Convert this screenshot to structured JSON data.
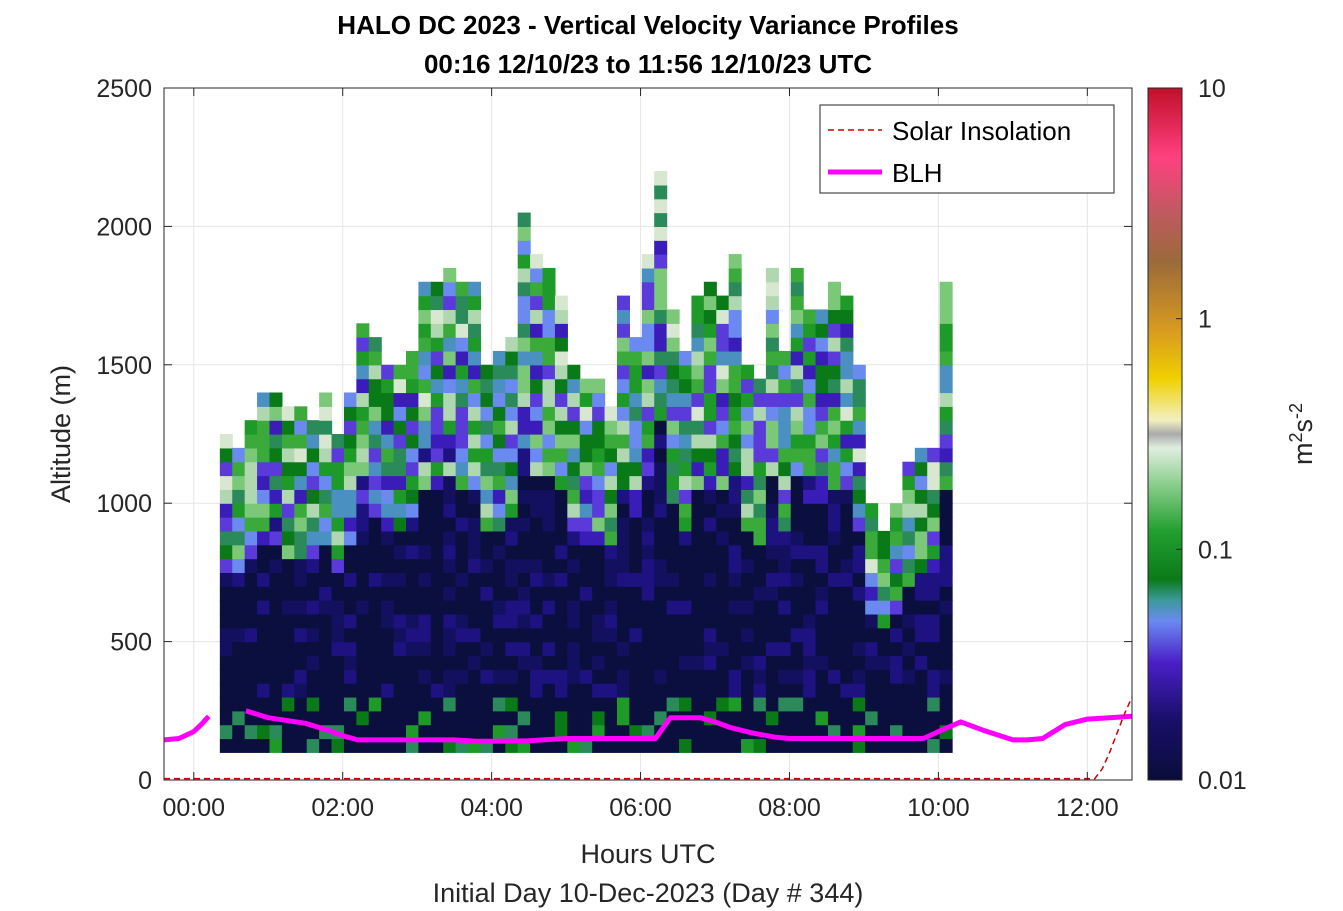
{
  "chart_data": {
    "type": "heatmap",
    "title": "HALO DC 2023 - Vertical Velocity Variance Profiles",
    "subtitle": "00:16 12/10/23 to 11:56 12/10/23  UTC",
    "xlabel": "Hours UTC",
    "xlabel2": "Initial Day 10-Dec-2023 (Day # 344)",
    "ylabel": "Altitude (m)",
    "colorbar_label": "m2s-2",
    "colorbar_label_parts": {
      "base": "m",
      "sup1": "2",
      "mid": "s",
      "sup2": "-2"
    },
    "xlim": [
      -0.4,
      12.6
    ],
    "ylim": [
      0,
      2500
    ],
    "x_ticks": [
      0,
      2,
      4,
      6,
      8,
      10,
      12
    ],
    "x_tick_labels": [
      "00:00",
      "02:00",
      "04:00",
      "06:00",
      "08:00",
      "10:00",
      "12:00"
    ],
    "y_ticks": [
      0,
      500,
      1000,
      1500,
      2000,
      2500
    ],
    "y_tick_labels": [
      "0",
      "500",
      "1000",
      "1500",
      "2000",
      "2500"
    ],
    "colorbar": {
      "scale": "log",
      "range": [
        0.01,
        10
      ],
      "ticks": [
        0.01,
        0.1,
        1,
        10
      ],
      "tick_labels": [
        "0.01",
        "0.1",
        "1",
        "10"
      ]
    },
    "grid": true,
    "legend": {
      "position": "top-right",
      "entries": [
        {
          "label": "Solar Insolation",
          "color": "#cc0000",
          "style": "dashed"
        },
        {
          "label": "BLH",
          "color": "#ff00ff",
          "style": "solid"
        }
      ]
    },
    "series": [
      {
        "name": "BLH",
        "color": "#ff00ff",
        "x": [
          -0.4,
          -0.2,
          0.0,
          0.1,
          0.2,
          0.5,
          0.7,
          1.0,
          1.5,
          1.8,
          2.0,
          2.2,
          3.0,
          3.5,
          3.8,
          4.0,
          4.5,
          5.0,
          5.5,
          6.0,
          6.2,
          6.4,
          6.8,
          7.0,
          7.2,
          7.5,
          7.8,
          8.0,
          8.5,
          9.0,
          9.5,
          9.8,
          10.0,
          10.3,
          10.6,
          11.0,
          11.2,
          11.4,
          11.7,
          12.0,
          12.3,
          12.6
        ],
        "y": [
          145,
          150,
          175,
          200,
          230,
          null,
          250,
          225,
          205,
          180,
          160,
          145,
          145,
          145,
          140,
          140,
          142,
          150,
          150,
          150,
          150,
          225,
          225,
          210,
          190,
          170,
          155,
          150,
          150,
          150,
          150,
          150,
          175,
          210,
          180,
          145,
          145,
          150,
          200,
          220,
          225,
          230
        ]
      },
      {
        "name": "Solar Insolation",
        "color": "#cc0000",
        "x": [
          -0.4,
          12.1,
          12.2,
          12.3,
          12.4,
          12.5,
          12.6
        ],
        "y": [
          5,
          5,
          40,
          100,
          170,
          240,
          300
        ]
      }
    ],
    "heatmap": {
      "cell_width_hours": 0.166667,
      "cell_height_m": 50,
      "first_column_start_hours": 0.35,
      "value_units": "m2s-2"
    }
  }
}
